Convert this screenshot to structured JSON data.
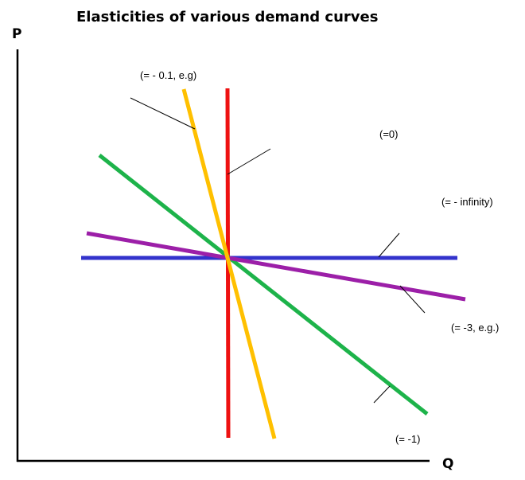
{
  "title": "Elasticities of various demand curves",
  "axes": {
    "y_label": "P",
    "x_label": "Q"
  },
  "curves": {
    "perfectly_elastic": {
      "label": "(= - infinity)",
      "color": "#3333cc"
    },
    "perfectly_inelastic": {
      "label": "(=0)",
      "color": "#ee1111"
    },
    "inelastic": {
      "label": "(= - 0.1, e.g)",
      "color": "#ffc000"
    },
    "unit_elastic": {
      "label": "(= -1)",
      "color": "#1db34a"
    },
    "elastic": {
      "label": "(= -3, e.g.)",
      "color": "#9c1fa8"
    }
  }
}
